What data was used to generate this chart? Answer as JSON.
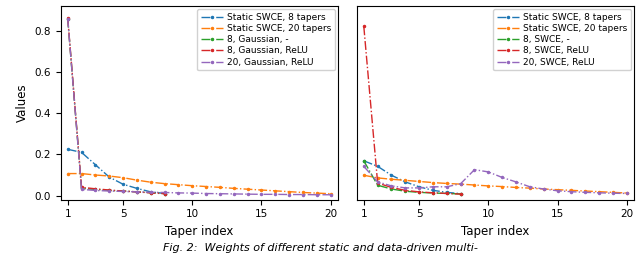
{
  "left": {
    "xlabel": "Taper index",
    "ylabel": "Values",
    "xlim": [
      0.5,
      20.5
    ],
    "ylim": [
      -0.02,
      0.92
    ],
    "yticks": [
      0.0,
      0.2,
      0.4,
      0.6,
      0.8
    ],
    "xticks": [
      1,
      5,
      10,
      15,
      20
    ],
    "series": [
      {
        "label": "Static SWCE, 8 tapers",
        "color": "#1f77b4",
        "linestyle": "-.",
        "marker": ".",
        "markersize": 3,
        "x": [
          1,
          2,
          3,
          4,
          5,
          6,
          7,
          8
        ],
        "y": [
          0.225,
          0.21,
          0.15,
          0.09,
          0.055,
          0.035,
          0.018,
          0.01
        ]
      },
      {
        "label": "Static SWCE, 20 tapers",
        "color": "#ff7f0e",
        "linestyle": "-.",
        "marker": ".",
        "markersize": 3,
        "x": [
          1,
          2,
          3,
          4,
          5,
          6,
          7,
          8,
          9,
          10,
          11,
          12,
          13,
          14,
          15,
          16,
          17,
          18,
          19,
          20
        ],
        "y": [
          0.107,
          0.107,
          0.1,
          0.095,
          0.087,
          0.075,
          0.065,
          0.058,
          0.053,
          0.048,
          0.044,
          0.04,
          0.035,
          0.031,
          0.027,
          0.023,
          0.019,
          0.015,
          0.012,
          0.009
        ]
      },
      {
        "label": "8, Gaussian, -",
        "color": "#2ca02c",
        "linestyle": "-.",
        "marker": ".",
        "markersize": 3,
        "x": [
          1,
          2,
          3,
          4,
          5,
          6,
          7,
          8
        ],
        "y": [
          0.86,
          0.035,
          0.03,
          0.025,
          0.022,
          0.018,
          0.014,
          0.01
        ]
      },
      {
        "label": "8, Gaussian, ReLU",
        "color": "#d62728",
        "linestyle": "-.",
        "marker": ".",
        "markersize": 3,
        "x": [
          1,
          2,
          3,
          4,
          5,
          6,
          7,
          8
        ],
        "y": [
          0.865,
          0.04,
          0.033,
          0.027,
          0.022,
          0.018,
          0.013,
          0.009
        ]
      },
      {
        "label": "20, Gaussian, ReLU",
        "color": "#9467bd",
        "linestyle": "-.",
        "marker": ".",
        "markersize": 3,
        "x": [
          1,
          2,
          3,
          4,
          5,
          6,
          7,
          8,
          9,
          10,
          11,
          12,
          13,
          14,
          15,
          16,
          17,
          18,
          19,
          20
        ],
        "y": [
          0.86,
          0.03,
          0.025,
          0.022,
          0.02,
          0.018,
          0.016,
          0.015,
          0.013,
          0.012,
          0.01,
          0.009,
          0.008,
          0.007,
          0.006,
          0.006,
          0.005,
          0.005,
          0.004,
          0.004
        ]
      }
    ]
  },
  "right": {
    "xlabel": "Taper index",
    "ylabel": "",
    "xlim": [
      0.5,
      20.5
    ],
    "ylim": [
      -0.02,
      0.85
    ],
    "yticks": [],
    "xticks": [
      1,
      5,
      10,
      15,
      20
    ],
    "series": [
      {
        "label": "Static SWCE, 8 tapers",
        "color": "#1f77b4",
        "linestyle": "-.",
        "marker": ".",
        "markersize": 3,
        "x": [
          1,
          2,
          3,
          4,
          5,
          6,
          7,
          8
        ],
        "y": [
          0.155,
          0.13,
          0.09,
          0.06,
          0.038,
          0.022,
          0.013,
          0.007
        ]
      },
      {
        "label": "Static SWCE, 20 tapers",
        "color": "#ff7f0e",
        "linestyle": "-.",
        "marker": ".",
        "markersize": 3,
        "x": [
          1,
          2,
          3,
          4,
          5,
          6,
          7,
          8,
          9,
          10,
          11,
          12,
          13,
          14,
          15,
          16,
          17,
          18,
          19,
          20
        ],
        "y": [
          0.09,
          0.078,
          0.072,
          0.067,
          0.062,
          0.057,
          0.053,
          0.05,
          0.046,
          0.042,
          0.039,
          0.035,
          0.032,
          0.028,
          0.025,
          0.022,
          0.019,
          0.016,
          0.013,
          0.01
        ]
      },
      {
        "label": "8, SWCE, -",
        "color": "#2ca02c",
        "linestyle": "-.",
        "marker": ".",
        "markersize": 3,
        "x": [
          1,
          2,
          3,
          4,
          5,
          6,
          7,
          8
        ],
        "y": [
          0.155,
          0.045,
          0.028,
          0.018,
          0.013,
          0.01,
          0.008,
          0.006
        ]
      },
      {
        "label": "8, SWCE, ReLU",
        "color": "#d62728",
        "linestyle": "-.",
        "marker": ".",
        "markersize": 3,
        "x": [
          1,
          2,
          3,
          4,
          5,
          6,
          7,
          8
        ],
        "y": [
          0.76,
          0.055,
          0.035,
          0.022,
          0.015,
          0.011,
          0.008,
          0.005
        ]
      },
      {
        "label": "20, SWCE, ReLU",
        "color": "#9467bd",
        "linestyle": "-.",
        "marker": ".",
        "markersize": 3,
        "x": [
          1,
          2,
          3,
          4,
          5,
          6,
          7,
          8,
          9,
          10,
          11,
          12,
          13,
          14,
          15,
          16,
          17,
          18,
          19,
          20
        ],
        "y": [
          0.13,
          0.06,
          0.042,
          0.033,
          0.033,
          0.038,
          0.038,
          0.052,
          0.115,
          0.105,
          0.08,
          0.06,
          0.038,
          0.028,
          0.02,
          0.016,
          0.013,
          0.011,
          0.009,
          0.008
        ]
      }
    ]
  },
  "caption": "Fig. 2:  Weights of different static and data-driven multi-",
  "legend_fontsize": 6.5,
  "tick_fontsize": 7.5,
  "label_fontsize": 8.5
}
